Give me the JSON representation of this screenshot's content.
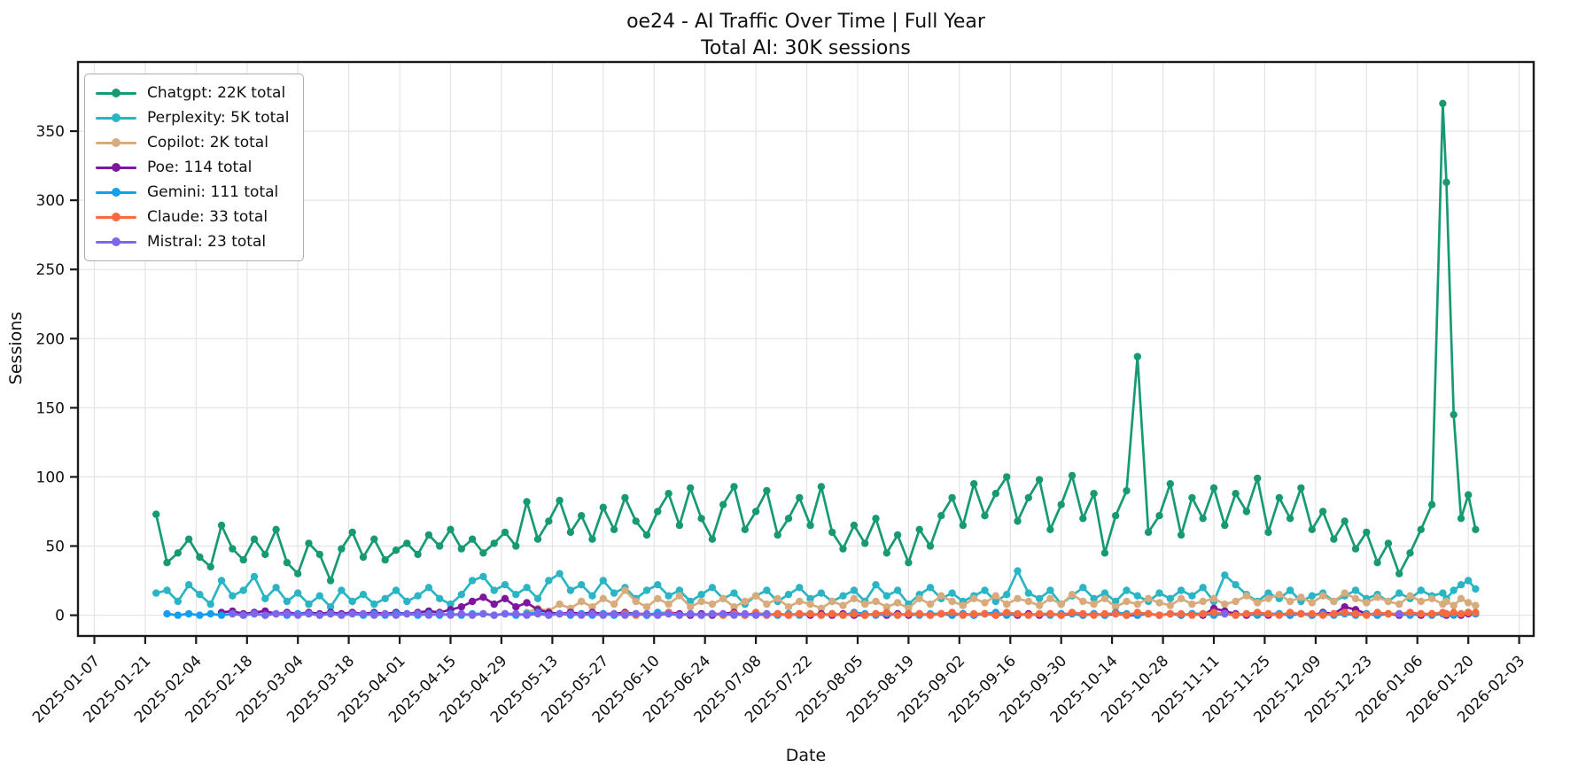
{
  "figure": {
    "title": "oe24 - AI Traffic Over Time | Full Year",
    "subtitle": "Total AI: 30K sessions",
    "background": "#ffffff",
    "spine_color": "#1a1a1a",
    "grid_color": "#e4e4e4"
  },
  "chart_data": {
    "type": "line",
    "title": "oe24 - AI Traffic Over Time | Full Year",
    "subtitle": "Total AI: 30K sessions",
    "xlabel": "Date",
    "ylabel": "Sessions",
    "grid": true,
    "legend_position": "upper-left",
    "x_unit": "days since 2025-01-07",
    "xlim_days": [
      -4.5,
      396
    ],
    "ylim": [
      -15,
      400
    ],
    "y_ticks": [
      0,
      50,
      100,
      150,
      200,
      250,
      300,
      350
    ],
    "x_tick_days": [
      0,
      14,
      28,
      42,
      56,
      70,
      84,
      98,
      112,
      126,
      140,
      154,
      168,
      182,
      196,
      210,
      224,
      238,
      252,
      266,
      280,
      294,
      308,
      322,
      336,
      350,
      364,
      378,
      392
    ],
    "x_tick_labels": [
      "2025-01-07",
      "2025-01-21",
      "2025-02-04",
      "2025-02-18",
      "2025-03-04",
      "2025-03-18",
      "2025-04-01",
      "2025-04-15",
      "2025-04-29",
      "2025-05-13",
      "2025-05-27",
      "2025-06-10",
      "2025-06-24",
      "2025-07-08",
      "2025-07-22",
      "2025-08-05",
      "2025-08-19",
      "2025-09-02",
      "2025-09-16",
      "2025-09-30",
      "2025-10-14",
      "2025-10-28",
      "2025-11-11",
      "2025-11-25",
      "2025-12-09",
      "2025-12-23",
      "2026-01-06",
      "2026-01-20",
      "2026-02-03"
    ],
    "x_days": [
      17,
      20,
      23,
      26,
      29,
      32,
      35,
      38,
      41,
      44,
      47,
      50,
      53,
      56,
      59,
      62,
      65,
      68,
      71,
      74,
      77,
      80,
      83,
      86,
      89,
      92,
      95,
      98,
      101,
      104,
      107,
      110,
      113,
      116,
      119,
      122,
      125,
      128,
      131,
      134,
      137,
      140,
      143,
      146,
      149,
      152,
      155,
      158,
      161,
      164,
      167,
      170,
      173,
      176,
      179,
      182,
      185,
      188,
      191,
      194,
      197,
      200,
      203,
      206,
      209,
      212,
      215,
      218,
      221,
      224,
      227,
      230,
      233,
      236,
      239,
      242,
      245,
      248,
      251,
      254,
      257,
      260,
      263,
      266,
      269,
      272,
      275,
      278,
      281,
      284,
      287,
      290,
      293,
      296,
      299,
      302,
      305,
      308,
      311,
      314,
      317,
      320,
      323,
      326,
      329,
      332,
      335,
      338,
      341,
      344,
      347,
      350,
      353,
      356,
      359,
      362,
      365,
      368,
      371,
      372,
      374,
      376,
      378,
      380
    ],
    "series": [
      {
        "name": "chatgpt",
        "label": "Chatgpt: 22K total",
        "color": "#179a74",
        "values": [
          73,
          38,
          45,
          55,
          42,
          35,
          65,
          48,
          40,
          55,
          44,
          62,
          38,
          30,
          52,
          44,
          25,
          48,
          60,
          42,
          55,
          40,
          47,
          52,
          44,
          58,
          50,
          62,
          48,
          55,
          45,
          52,
          60,
          50,
          82,
          55,
          68,
          83,
          60,
          72,
          55,
          78,
          62,
          85,
          68,
          58,
          75,
          88,
          65,
          92,
          70,
          55,
          80,
          93,
          62,
          75,
          90,
          58,
          70,
          85,
          65,
          93,
          60,
          48,
          65,
          52,
          70,
          45,
          58,
          38,
          62,
          50,
          72,
          85,
          65,
          95,
          72,
          88,
          100,
          68,
          85,
          98,
          62,
          80,
          101,
          70,
          88,
          45,
          72,
          90,
          187,
          60,
          72,
          95,
          58,
          85,
          70,
          92,
          65,
          88,
          75,
          99,
          60,
          85,
          70,
          92,
          62,
          75,
          55,
          68,
          48,
          60,
          38,
          52,
          30,
          45,
          62,
          80,
          370,
          313,
          145,
          70,
          87,
          62
        ]
      },
      {
        "name": "perplexity",
        "label": "Perplexity: 5K total",
        "color": "#2ab5c5",
        "values": [
          16,
          18,
          10,
          22,
          15,
          8,
          25,
          14,
          18,
          28,
          12,
          20,
          10,
          16,
          8,
          14,
          6,
          18,
          10,
          15,
          8,
          12,
          18,
          10,
          14,
          20,
          12,
          8,
          15,
          25,
          28,
          18,
          22,
          15,
          20,
          12,
          25,
          30,
          18,
          22,
          14,
          25,
          16,
          20,
          12,
          18,
          22,
          14,
          18,
          10,
          15,
          20,
          12,
          16,
          8,
          14,
          18,
          10,
          15,
          20,
          12,
          16,
          10,
          14,
          18,
          10,
          22,
          14,
          18,
          8,
          15,
          20,
          12,
          16,
          10,
          14,
          18,
          10,
          15,
          32,
          16,
          12,
          18,
          8,
          14,
          20,
          12,
          16,
          10,
          18,
          14,
          10,
          16,
          12,
          18,
          14,
          20,
          10,
          29,
          22,
          15,
          10,
          16,
          12,
          18,
          10,
          14,
          16,
          10,
          14,
          18,
          12,
          15,
          10,
          16,
          12,
          18,
          14,
          16,
          12,
          18,
          22,
          25,
          19
        ]
      },
      {
        "name": "copilot",
        "label": "Copilot: 2K total",
        "color": "#d8ab7d",
        "values": [
          null,
          null,
          null,
          null,
          null,
          null,
          null,
          null,
          null,
          null,
          null,
          null,
          null,
          null,
          null,
          null,
          null,
          null,
          null,
          null,
          null,
          null,
          null,
          null,
          null,
          null,
          null,
          null,
          null,
          null,
          null,
          null,
          null,
          null,
          2,
          5,
          3,
          8,
          5,
          10,
          6,
          12,
          8,
          18,
          10,
          6,
          12,
          8,
          14,
          6,
          10,
          8,
          12,
          6,
          10,
          14,
          8,
          12,
          6,
          10,
          8,
          5,
          10,
          7,
          12,
          8,
          10,
          6,
          9,
          5,
          12,
          8,
          14,
          10,
          7,
          12,
          9,
          14,
          8,
          12,
          10,
          7,
          12,
          8,
          15,
          10,
          8,
          12,
          6,
          10,
          8,
          12,
          9,
          7,
          12,
          8,
          10,
          12,
          8,
          10,
          14,
          9,
          12,
          15,
          10,
          13,
          9,
          14,
          10,
          16,
          12,
          9,
          13,
          10,
          8,
          14,
          10,
          12,
          8,
          10,
          7,
          12,
          9,
          7
        ]
      },
      {
        "name": "poe",
        "label": "Poe: 114 total",
        "color": "#7f16a0",
        "values": [
          null,
          null,
          null,
          null,
          null,
          null,
          2,
          3,
          1,
          2,
          3,
          1,
          2,
          1,
          2,
          1,
          2,
          1,
          2,
          1,
          2,
          1,
          2,
          1,
          2,
          3,
          2,
          4,
          6,
          10,
          13,
          8,
          12,
          6,
          9,
          4,
          2,
          1,
          2,
          1,
          2,
          1,
          1,
          2,
          1,
          0,
          1,
          2,
          1,
          0,
          1,
          0,
          1,
          2,
          0,
          1,
          0,
          1,
          0,
          1,
          0,
          1,
          0,
          1,
          0,
          0,
          1,
          0,
          1,
          0,
          1,
          0,
          1,
          0,
          1,
          0,
          1,
          0,
          1,
          0,
          1,
          0,
          1,
          0,
          1,
          0,
          1,
          0,
          1,
          0,
          0,
          1,
          0,
          1,
          0,
          1,
          0,
          5,
          3,
          1,
          0,
          1,
          0,
          1,
          0,
          1,
          0,
          2,
          1,
          6,
          4,
          1,
          0,
          1,
          0,
          1,
          0,
          1,
          1,
          0,
          1,
          0,
          1,
          1
        ]
      },
      {
        "name": "gemini",
        "label": "Gemini: 111 total",
        "color": "#129ff0",
        "values": [
          null,
          1,
          0,
          1,
          0,
          1,
          0,
          1,
          0,
          1,
          0,
          1,
          0,
          1,
          1,
          0,
          1,
          0,
          1,
          0,
          1,
          0,
          1,
          1,
          0,
          1,
          0,
          1,
          0,
          1,
          1,
          0,
          1,
          0,
          1,
          2,
          0,
          1,
          0,
          1,
          0,
          1,
          0,
          1,
          1,
          0,
          2,
          1,
          0,
          1,
          0,
          1,
          0,
          1,
          0,
          1,
          1,
          0,
          1,
          0,
          1,
          0,
          1,
          0,
          2,
          1,
          0,
          1,
          0,
          1,
          0,
          1,
          1,
          0,
          1,
          0,
          1,
          2,
          0,
          1,
          0,
          1,
          0,
          1,
          1,
          0,
          1,
          0,
          2,
          1,
          0,
          1,
          0,
          1,
          0,
          1,
          1,
          0,
          1,
          0,
          1,
          0,
          1,
          1,
          0,
          1,
          0,
          1,
          0,
          1,
          0,
          1,
          0,
          1,
          1,
          0,
          1,
          0,
          1,
          1,
          0,
          1,
          2,
          1
        ]
      },
      {
        "name": "claude",
        "label": "Claude: 33 total",
        "color": "#f96a41",
        "values": [
          null,
          null,
          null,
          null,
          null,
          null,
          null,
          null,
          null,
          null,
          null,
          null,
          null,
          null,
          null,
          null,
          null,
          null,
          null,
          null,
          null,
          null,
          null,
          null,
          null,
          null,
          null,
          null,
          null,
          null,
          null,
          null,
          null,
          null,
          null,
          null,
          null,
          null,
          null,
          null,
          null,
          null,
          null,
          1,
          0,
          1,
          0,
          2,
          0,
          1,
          0,
          1,
          0,
          1,
          0,
          2,
          0,
          1,
          0,
          1,
          1,
          0,
          1,
          0,
          1,
          0,
          1,
          2,
          0,
          1,
          1,
          0,
          1,
          2,
          0,
          1,
          1,
          0,
          2,
          1,
          0,
          1,
          1,
          0,
          2,
          1,
          0,
          1,
          1,
          0,
          2,
          1,
          0,
          1,
          1,
          0,
          1,
          2,
          1,
          0,
          1,
          2,
          1,
          0,
          2,
          1,
          1,
          0,
          1,
          2,
          1,
          0,
          2,
          1,
          1,
          2,
          1,
          1,
          2,
          1,
          2,
          1,
          2,
          2
        ]
      },
      {
        "name": "mistral",
        "label": "Mistral: 23 total",
        "color": "#7b68ee",
        "values": [
          null,
          null,
          null,
          null,
          null,
          null,
          null,
          1,
          0,
          1,
          0,
          1,
          1,
          0,
          1,
          0,
          1,
          0,
          1,
          1,
          0,
          1,
          0,
          1,
          1,
          0,
          1,
          0,
          1,
          0,
          1,
          0,
          1,
          1,
          0,
          1,
          0,
          1,
          1,
          0,
          1,
          0,
          1,
          0,
          1,
          1,
          0,
          1,
          0,
          1,
          0,
          1,
          1,
          0,
          1,
          0,
          1,
          null,
          null,
          null,
          null,
          null,
          null,
          null,
          null,
          null,
          null,
          null,
          null,
          null,
          null,
          null,
          null,
          null,
          null,
          null,
          null,
          null,
          null,
          null,
          null,
          null,
          null,
          null,
          null,
          null,
          null,
          null,
          null,
          null,
          null,
          null,
          null,
          null,
          null,
          null,
          null,
          null,
          1,
          null,
          null,
          null,
          null,
          null,
          null,
          null,
          null,
          null,
          null,
          null,
          null,
          null,
          null,
          null,
          1,
          null,
          null,
          null,
          null,
          null,
          null,
          null,
          null,
          null
        ]
      }
    ]
  }
}
